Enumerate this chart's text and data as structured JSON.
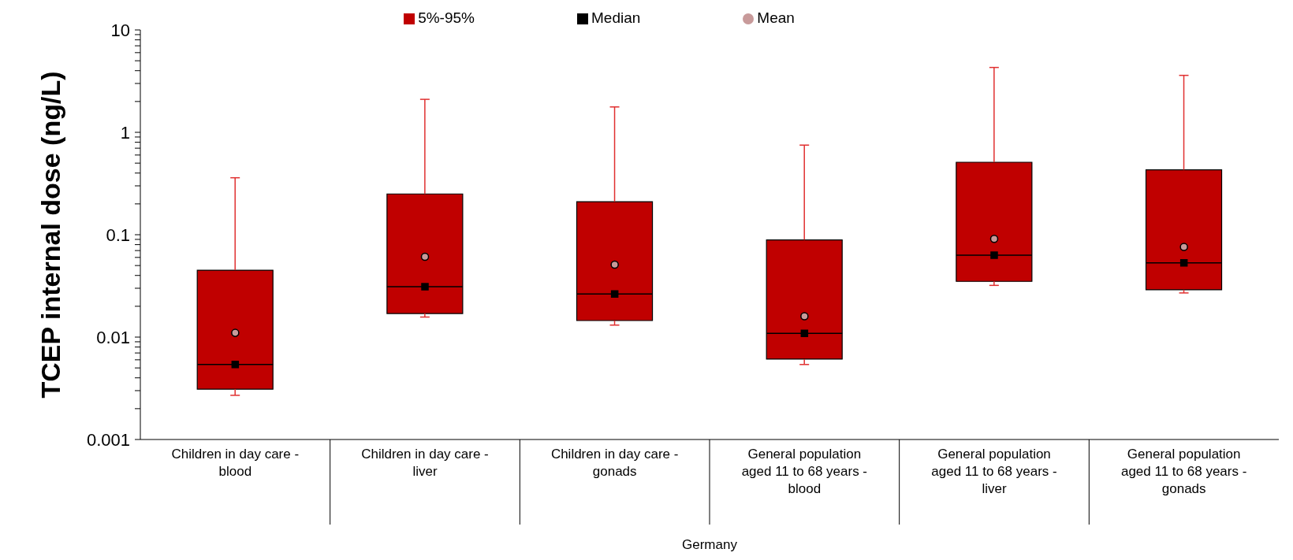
{
  "chart_data": {
    "type": "box",
    "ylabel": "TCEP internal dose (ng/L)",
    "xlabel": "Germany",
    "log": true,
    "legend": "top",
    "categories": [
      "Children in day care - blood",
      "Children in day care - liver",
      "Children in day care - gonads",
      "General population aged 11 to 68 years - blood",
      "General population aged 11 to 68 years - liver",
      "General population aged 11 to 68 years - gonads"
    ],
    "ylim": [
      0.001,
      10
    ],
    "yticks": [
      0.001,
      {
        "value": 0.002,
        "label": null
      },
      {
        "value": 0.003,
        "label": null
      },
      {
        "value": 0.004,
        "label": null
      },
      {
        "value": 0.005,
        "label": null
      },
      {
        "value": 0.006,
        "label": null
      },
      {
        "value": 0.007,
        "label": null
      },
      {
        "value": 0.008,
        "label": null
      },
      {
        "value": 0.009,
        "label": null
      },
      0.01,
      {
        "value": 0.02,
        "label": null
      },
      {
        "value": 0.03,
        "label": null
      },
      {
        "value": 0.04,
        "label": null
      },
      {
        "value": 0.05,
        "label": null
      },
      {
        "value": 0.06,
        "label": null
      },
      {
        "value": 0.07,
        "label": null
      },
      {
        "value": 0.08,
        "label": null
      },
      {
        "value": 0.09,
        "label": null
      },
      0.1,
      {
        "value": 0.2,
        "label": null
      },
      {
        "value": 0.3,
        "label": null
      },
      {
        "value": 0.4,
        "label": null
      },
      {
        "value": 0.5,
        "label": null
      },
      {
        "value": 0.6,
        "label": null
      },
      {
        "value": 0.7,
        "label": null
      },
      {
        "value": 0.8,
        "label": null
      },
      {
        "value": 0.9,
        "label": null
      },
      1,
      {
        "value": 2,
        "label": null
      },
      {
        "value": 3,
        "label": null
      },
      {
        "value": 4,
        "label": null
      },
      {
        "value": 5,
        "label": null
      },
      {
        "value": 6,
        "label": null
      },
      {
        "value": 7,
        "label": null
      },
      {
        "value": 8,
        "label": null
      },
      {
        "value": 9,
        "label": null
      },
      10
    ],
    "series": [
      {
        "type": "box",
        "name": "5%-95%",
        "color": "#c00000",
        "boxes": [
          {
            "low": 0.0027,
            "q1": 0.0031,
            "median": 0.0054,
            "q3": 0.045,
            "high": 0.36
          },
          {
            "low": 0.0157,
            "q1": 0.017,
            "median": 0.031,
            "q3": 0.25,
            "high": 2.1
          },
          {
            "low": 0.0131,
            "q1": 0.0145,
            "median": 0.0264,
            "q3": 0.21,
            "high": 1.77
          },
          {
            "low": 0.0054,
            "q1": 0.0061,
            "median": 0.0109,
            "q3": 0.089,
            "high": 0.75
          },
          {
            "low": 0.032,
            "q1": 0.035,
            "median": 0.063,
            "q3": 0.51,
            "high": 4.3
          },
          {
            "low": 0.027,
            "q1": 0.029,
            "median": 0.053,
            "q3": 0.43,
            "high": 3.6
          }
        ]
      },
      {
        "type": "scatter",
        "name": "Median",
        "color": "#000000",
        "marker": "square",
        "values": [
          0.0054,
          0.031,
          0.0264,
          0.0109,
          0.063,
          0.053
        ]
      },
      {
        "type": "scatter",
        "name": "Mean",
        "color": "#c89a9a",
        "marker": "circle",
        "values": [
          0.011,
          0.061,
          0.051,
          0.016,
          0.091,
          0.076
        ]
      }
    ]
  }
}
